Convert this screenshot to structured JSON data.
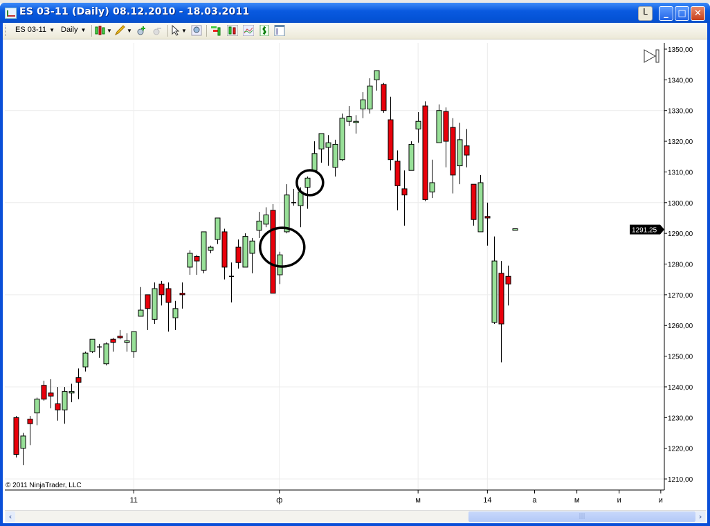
{
  "window": {
    "title": "ES 03-11 (Daily)  08.12.2010 - 18.03.2011",
    "btn_l": "L",
    "btn_min": "_",
    "btn_max": "□",
    "btn_close": "✕"
  },
  "toolbar": {
    "instrument": "ES 03-11",
    "interval": "Daily",
    "icons": [
      "chart-style-icon",
      "drawing-pencil-icon",
      "zoom-in-icon",
      "zoom-out-icon",
      "cursor-icon",
      "zoom-icon",
      "indicators-icon",
      "strategies-icon",
      "data-series-icon",
      "order-icon",
      "properties-icon"
    ]
  },
  "chart": {
    "copyright": "© 2011 NinjaTrader, LLC",
    "last_price_label": "1291,25",
    "colors": {
      "up": "#98e098",
      "down": "#e8000b",
      "outline": "#000000",
      "grid": "#ececec"
    }
  },
  "chart_data": {
    "type": "candlestick",
    "ylim": [
      1205,
      1352
    ],
    "y_ticks": [
      "1210,00",
      "1220,00",
      "1230,00",
      "1240,00",
      "1250,00",
      "1260,00",
      "1270,00",
      "1280,00",
      "1290,00",
      "1300,00",
      "1310,00",
      "1320,00",
      "1330,00",
      "1340,00",
      "1350,00"
    ],
    "y_tick_values": [
      1210,
      1220,
      1230,
      1240,
      1250,
      1260,
      1270,
      1280,
      1290,
      1300,
      1310,
      1320,
      1330,
      1340,
      1350
    ],
    "y_grid_values": [
      1210,
      1240,
      1270,
      1300,
      1330
    ],
    "x_ticks": [
      {
        "label": "11",
        "bar": 17
      },
      {
        "label": "ф",
        "bar": 38
      },
      {
        "label": "м",
        "bar": 58
      },
      {
        "label": "14",
        "bar": 68
      },
      {
        "label": "а",
        "bar": 74.8
      },
      {
        "label": "м",
        "bar": 80.9
      },
      {
        "label": "и",
        "bar": 87
      },
      {
        "label": "и",
        "bar": 93
      }
    ],
    "x_grid_bars": [
      17,
      38,
      58,
      68
    ],
    "last_price": 1291.25,
    "annotations": [
      {
        "type": "circle",
        "bar": 38.4,
        "price": 1285.5
      },
      {
        "type": "circle",
        "bar": 42.4,
        "price": 1306.5
      }
    ],
    "ohlc": [
      [
        1230,
        1230.5,
        1217,
        1218
      ],
      [
        1220,
        1225,
        1214.5,
        1224
      ],
      [
        1229.5,
        1230.5,
        1221,
        1228
      ],
      [
        1231.5,
        1236.5,
        1227.5,
        1236
      ],
      [
        1240.5,
        1242,
        1235.5,
        1236
      ],
      [
        1238,
        1242.5,
        1233,
        1237
      ],
      [
        1234.5,
        1240,
        1229,
        1232.5
      ],
      [
        1232.5,
        1240,
        1228,
        1238.5
      ],
      [
        1238,
        1241,
        1235,
        1238.5
      ],
      [
        1243,
        1246,
        1236,
        1241.5
      ],
      [
        1246.5,
        1251.5,
        1245,
        1251
      ],
      [
        1251.5,
        1255.5,
        1251,
        1255.5
      ],
      [
        1253,
        1254,
        1249.5,
        1253
      ],
      [
        1247.5,
        1254.5,
        1247,
        1254
      ],
      [
        1255.5,
        1256,
        1251.5,
        1254.5
      ],
      [
        1256.5,
        1258.5,
        1255.5,
        1256
      ],
      [
        1254.5,
        1257.5,
        1251.5,
        1255
      ],
      [
        1251.5,
        1258,
        1249.5,
        1258
      ],
      [
        1263,
        1272.5,
        1263,
        1265
      ],
      [
        1270,
        1270,
        1258.5,
        1265.5
      ],
      [
        1262,
        1274,
        1260.5,
        1272
      ],
      [
        1273.5,
        1274.5,
        1266.5,
        1270
      ],
      [
        1272,
        1274,
        1258,
        1267.5
      ],
      [
        1262.5,
        1268,
        1258.5,
        1265.5
      ],
      [
        1270.5,
        1274,
        1265.5,
        1270
      ],
      [
        1279,
        1284.5,
        1276.5,
        1283.5
      ],
      [
        1282.5,
        1283,
        1276.5,
        1281
      ],
      [
        1278,
        1290.5,
        1277,
        1290.5
      ],
      [
        1284.5,
        1286,
        1283.5,
        1285.5
      ],
      [
        1288,
        1295,
        1286.5,
        1295
      ],
      [
        1290.5,
        1291.5,
        1275,
        1279
      ],
      [
        1276,
        1280.5,
        1267.5,
        1276
      ],
      [
        1285.5,
        1288,
        1278.5,
        1280.5
      ],
      [
        1279,
        1290,
        1279,
        1289
      ],
      [
        1283.5,
        1288.5,
        1277,
        1287.5
      ],
      [
        1291,
        1297,
        1288.5,
        1294
      ],
      [
        1293,
        1298.5,
        1292,
        1296
      ],
      [
        1297.5,
        1299.5,
        1270.5,
        1270.5
      ],
      [
        1276.5,
        1284,
        1273.5,
        1283
      ],
      [
        1290.5,
        1306,
        1290,
        1302.5
      ],
      [
        1300,
        1304.5,
        1299,
        1300
      ],
      [
        1299,
        1305,
        1292,
        1303.5
      ],
      [
        1305,
        1308.5,
        1298,
        1308
      ],
      [
        1310.5,
        1320,
        1310,
        1316
      ],
      [
        1317.5,
        1322.5,
        1313,
        1322.5
      ],
      [
        1318,
        1322,
        1312,
        1319.5
      ],
      [
        1311.5,
        1320.5,
        1308.5,
        1319
      ],
      [
        1314,
        1329,
        1313.5,
        1327.5
      ],
      [
        1326.5,
        1331.5,
        1325,
        1328
      ],
      [
        1326,
        1328.5,
        1322.5,
        1326.5
      ],
      [
        1330.5,
        1336,
        1327.5,
        1333.5
      ],
      [
        1330.5,
        1340.5,
        1329,
        1338
      ],
      [
        1340,
        1343,
        1336.5,
        1343
      ],
      [
        1338.5,
        1339,
        1329.3,
        1330
      ],
      [
        1327,
        1334.5,
        1310.5,
        1314
      ],
      [
        1313.5,
        1317,
        1297.5,
        1305.5
      ],
      [
        1304.5,
        1310.5,
        1292.5,
        1302.5
      ],
      [
        1310.5,
        1320,
        1310.5,
        1319
      ],
      [
        1324,
        1329.5,
        1319.5,
        1326.5
      ],
      [
        1331.5,
        1333,
        1300.5,
        1301
      ],
      [
        1303.5,
        1314,
        1301.5,
        1306.5
      ],
      [
        1319.5,
        1332,
        1319.5,
        1330
      ],
      [
        1329.7,
        1331,
        1311.5,
        1320
      ],
      [
        1324.5,
        1327.5,
        1303,
        1309
      ],
      [
        1312,
        1326,
        1306,
        1320.5
      ],
      [
        1318.5,
        1324,
        1311.5,
        1315.5
      ],
      [
        1306,
        1306,
        1292.5,
        1294.5
      ],
      [
        1290.5,
        1309,
        1290.5,
        1306.5
      ],
      [
        1295.5,
        1300,
        1286,
        1295
      ],
      [
        1261,
        1289,
        1260.5,
        1281
      ],
      [
        1277,
        1281,
        1248,
        1260.5
      ],
      [
        1276,
        1279.5,
        1266.5,
        1273.5
      ],
      [
        1291,
        1291.5,
        1291,
        1291.5
      ]
    ]
  },
  "scrollbar": {
    "left_arrow": "‹",
    "right_arrow": "›",
    "thumb_grip": "|||"
  }
}
